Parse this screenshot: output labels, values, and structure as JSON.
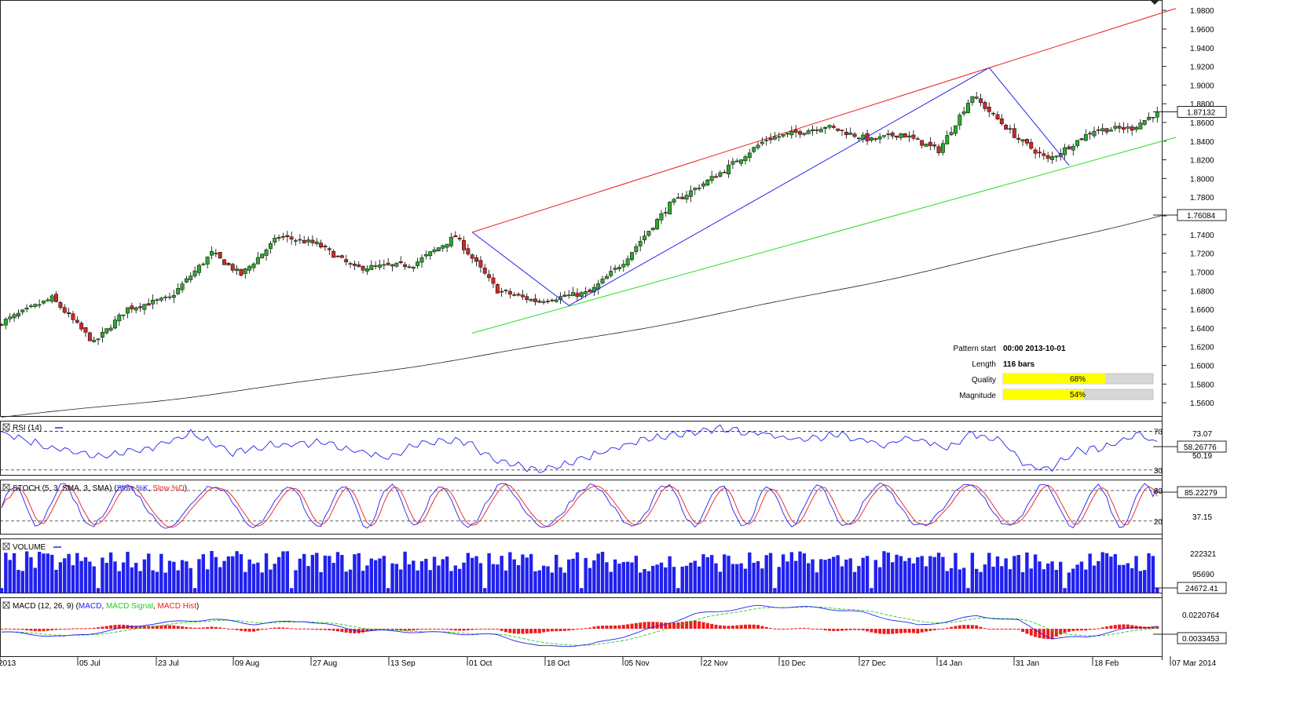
{
  "chart_data": [
    {
      "type": "candlestick",
      "panel": "price",
      "y_axis_ticks": [
        "1.9800",
        "1.9600",
        "1.9400",
        "1.9200",
        "1.9000",
        "1.8800",
        "1.8600",
        "1.8400",
        "1.8200",
        "1.8000",
        "1.7800",
        "1.7600",
        "1.7400",
        "1.7200",
        "1.7000",
        "1.6800",
        "1.6600",
        "1.6400",
        "1.6200",
        "1.6000",
        "1.5800",
        "1.5600"
      ],
      "ylim": [
        1.5458,
        1.9902
      ],
      "x_tick_labels": [
        "2013",
        "05 Jul",
        "23 Jul",
        "09 Aug",
        "27 Aug",
        "13 Sep",
        "01 Oct",
        "18 Oct",
        "05 Nov",
        "22 Nov",
        "10 Dec",
        "27 Dec",
        "14 Jan",
        "31 Jan",
        "18 Feb",
        "07 Mar 2014"
      ],
      "price_label_current": "1.87132",
      "price_label_ma": "1.76084",
      "current_price": 1.87132,
      "moving_average_last": 1.76084,
      "bars": 180,
      "anchor_closes": [
        [
          0,
          1.646
        ],
        [
          12,
          1.672
        ],
        [
          22,
          1.624
        ],
        [
          30,
          1.661
        ],
        [
          40,
          1.672
        ],
        [
          50,
          1.72
        ],
        [
          57,
          1.697
        ],
        [
          66,
          1.738
        ],
        [
          75,
          1.73
        ],
        [
          84,
          1.704
        ],
        [
          98,
          1.708
        ],
        [
          108,
          1.738
        ],
        [
          118,
          1.68
        ],
        [
          127,
          1.669
        ],
        [
          140,
          1.678
        ],
        [
          148,
          1.711
        ],
        [
          159,
          1.772
        ],
        [
          171,
          1.806
        ],
        [
          182,
          1.842
        ],
        [
          196,
          1.856
        ],
        [
          207,
          1.841
        ],
        [
          214,
          1.848
        ],
        [
          223,
          1.83
        ],
        [
          231,
          1.889
        ],
        [
          242,
          1.842
        ],
        [
          249,
          1.82
        ],
        [
          260,
          1.852
        ],
        [
          269,
          1.854
        ],
        [
          275,
          1.871
        ]
      ],
      "bull_color": "#2fa82f",
      "bear_color": "#cc2a2a",
      "moving_average": {
        "start": 1.5445,
        "end": 1.7608
      },
      "channel": {
        "resistance": {
          "start": 1.7425,
          "end": 1.982,
          "color": "#ee1c1c"
        },
        "support": {
          "start": 1.6345,
          "end": 1.844,
          "color": "#22dd22"
        }
      },
      "zigzag": [
        1.7425,
        1.664,
        1.9185,
        1.814
      ],
      "zigzag_color": "#2222ee",
      "pattern_info": {
        "rows": [
          {
            "label": "Pattern start",
            "value": "00:00 2013-10-01"
          },
          {
            "label": "Length",
            "value": "116 bars"
          }
        ],
        "quality_label": "Quality",
        "quality_pct": 68,
        "quality_text": "68%",
        "magnitude_label": "Magnitude",
        "magnitude_pct": 54,
        "magnitude_text": "54%"
      }
    },
    {
      "type": "line",
      "panel": "rsi",
      "title": "RSI (14)",
      "ylim": [
        25,
        80
      ],
      "levels": [
        70,
        30
      ],
      "level_labels": [
        "70",
        "30"
      ],
      "axis_labels": [
        "73.07",
        "50.19"
      ],
      "current_label": "58.26776",
      "series": [
        {
          "name": "RSI (14)",
          "color": "#2222ee",
          "anchors": [
            [
              0,
              68
            ],
            [
              10,
              55
            ],
            [
              22,
              44
            ],
            [
              35,
              52
            ],
            [
              45,
              68
            ],
            [
              55,
              48
            ],
            [
              65,
              56
            ],
            [
              76,
              58
            ],
            [
              84,
              50
            ],
            [
              92,
              42
            ],
            [
              100,
              58
            ],
            [
              110,
              60
            ],
            [
              118,
              40
            ],
            [
              128,
              30
            ],
            [
              134,
              35
            ],
            [
              144,
              50
            ],
            [
              152,
              60
            ],
            [
              160,
              66
            ],
            [
              170,
              72
            ],
            [
              180,
              68
            ],
            [
              190,
              62
            ],
            [
              200,
              66
            ],
            [
              210,
              55
            ],
            [
              216,
              64
            ],
            [
              225,
              52
            ],
            [
              231,
              68
            ],
            [
              238,
              60
            ],
            [
              244,
              34
            ],
            [
              250,
              32
            ],
            [
              256,
              50
            ],
            [
              262,
              52
            ],
            [
              270,
              66
            ],
            [
              275,
              58
            ]
          ]
        }
      ]
    },
    {
      "type": "line",
      "panel": "stochastic",
      "title": "STOCH (5, 3, SMA, 3, SMA)",
      "ylim": [
        -5,
        100
      ],
      "levels": [
        80,
        20
      ],
      "level_labels": [
        "80",
        "20"
      ],
      "axis_labels": [
        "37.15"
      ],
      "current_label": "85.22279",
      "series": [
        {
          "name": "Slow %K",
          "color": "#2222ee"
        },
        {
          "name": "Slow %D",
          "color": "#ee1c1c"
        }
      ]
    },
    {
      "type": "bar",
      "panel": "volume",
      "title": "VOLUME",
      "axis_labels": [
        "222321",
        "95690"
      ],
      "current_label": "24672.41",
      "max_volume": 290000,
      "bar_color": "#2020ee",
      "series": [
        {
          "name": "VOLUME",
          "color": "#2222ee"
        }
      ]
    },
    {
      "type": "line",
      "panel": "macd",
      "title": "MACD (12, 26, 9)",
      "axis_labels": [
        "0.0220764"
      ],
      "current_label": "0.0033453",
      "ylim": [
        -0.034,
        0.038
      ],
      "series": [
        {
          "name": "MACD",
          "color": "#2222ee",
          "anchors": [
            [
              0,
              -0.004
            ],
            [
              15,
              -0.01
            ],
            [
              25,
              -0.003
            ],
            [
              35,
              0.006
            ],
            [
              50,
              0.012
            ],
            [
              60,
              0.006
            ],
            [
              72,
              0.01
            ],
            [
              85,
              -0.002
            ],
            [
              100,
              -0.004
            ],
            [
              118,
              -0.008
            ],
            [
              128,
              -0.022
            ],
            [
              140,
              -0.02
            ],
            [
              152,
              -0.004
            ],
            [
              165,
              0.018
            ],
            [
              180,
              0.028
            ],
            [
              195,
              0.026
            ],
            [
              205,
              0.02
            ],
            [
              218,
              0.004
            ],
            [
              226,
              0.01
            ],
            [
              232,
              0.016
            ],
            [
              242,
              0.01
            ],
            [
              250,
              -0.012
            ],
            [
              258,
              -0.01
            ],
            [
              268,
              0.0
            ],
            [
              275,
              0.004
            ]
          ]
        },
        {
          "name": "MACD Signal",
          "color": "#22cc22"
        },
        {
          "name": "MACD Hist",
          "color": "#ee1c1c"
        }
      ]
    }
  ]
}
